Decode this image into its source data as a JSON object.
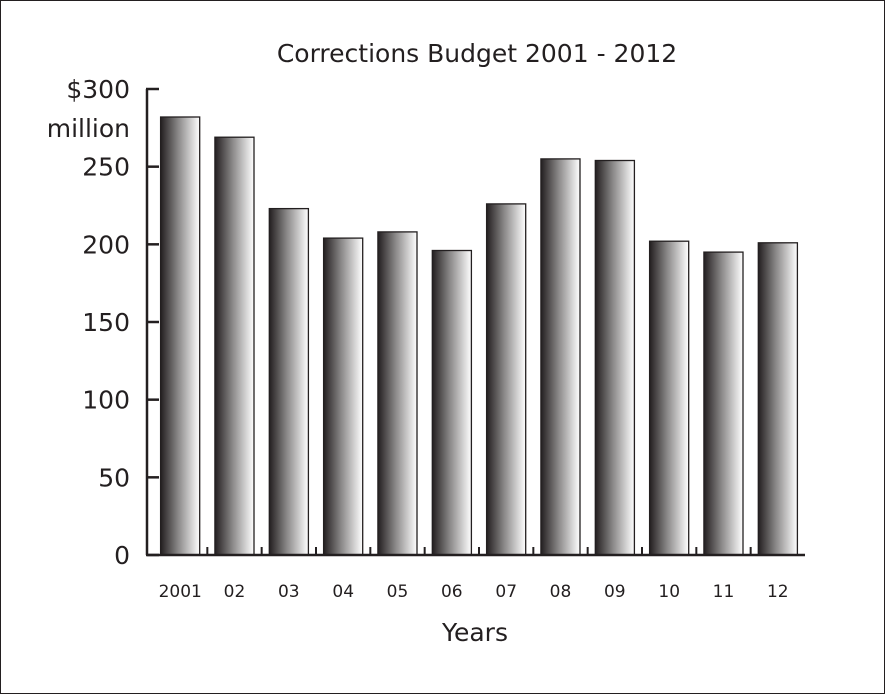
{
  "chart_data": {
    "type": "bar",
    "title": "Corrections Budget 2001 - 2012",
    "xlabel": "Years",
    "ylabel": "",
    "y_unit_label": "million",
    "categories": [
      "2001",
      "02",
      "03",
      "04",
      "05",
      "06",
      "07",
      "08",
      "09",
      "10",
      "11",
      "12"
    ],
    "values": [
      282,
      269,
      223,
      204,
      208,
      196,
      226,
      255,
      254,
      202,
      195,
      201
    ],
    "ylim": [
      0,
      300
    ],
    "yticks": [
      0,
      50,
      100,
      150,
      200,
      250,
      300
    ],
    "ytick_labels": [
      "0",
      "50",
      "100",
      "150",
      "200",
      "250",
      "$300"
    ],
    "grid": false,
    "legend": "none",
    "colors": {
      "bar_dark": "#231f20",
      "bar_light": "#ffffff",
      "axis": "#231f20"
    }
  }
}
